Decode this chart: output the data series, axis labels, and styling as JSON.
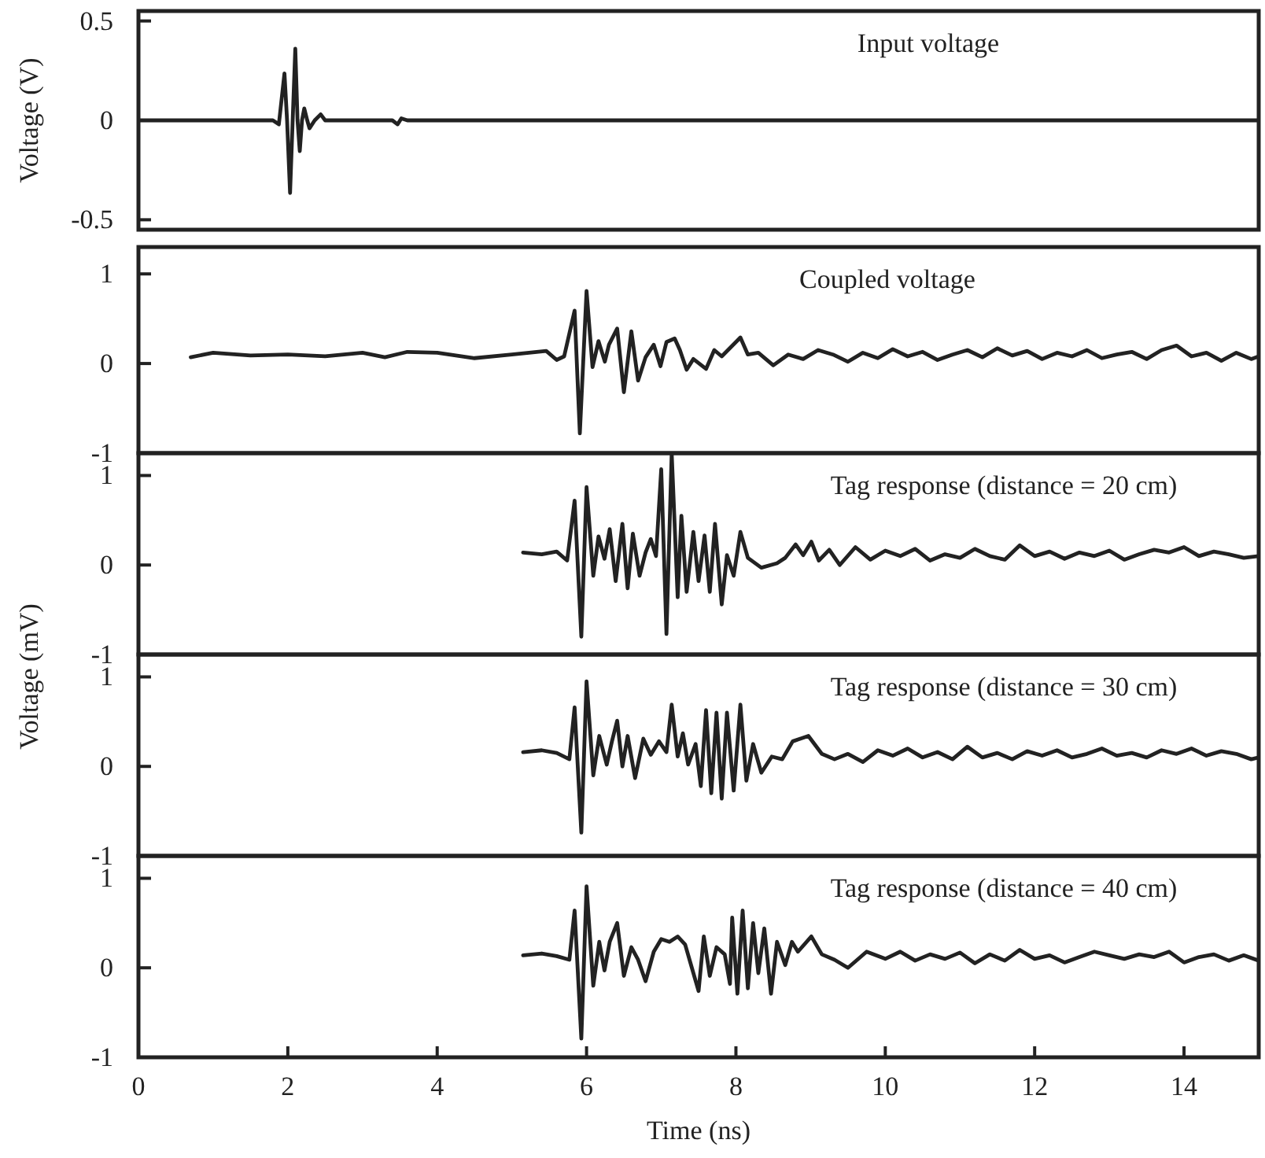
{
  "chart_data": [
    {
      "type": "line",
      "title": "Input voltage",
      "ylabel": "Voltage (V)",
      "color": "#222222",
      "xlim": [
        0,
        15
      ],
      "ylim": [
        -0.55,
        0.55
      ],
      "yticks": [
        -0.5,
        0,
        0.5
      ],
      "tick_labels": "y",
      "x": [
        0,
        1.8,
        1.88,
        1.955,
        1.99,
        2.03,
        2.065,
        2.1,
        2.13,
        2.16,
        2.19,
        2.22,
        2.26,
        2.29,
        2.36,
        2.44,
        2.5,
        2.7,
        3.4,
        3.47,
        3.52,
        3.6,
        15
      ],
      "values": [
        0,
        0,
        -0.02,
        0.236,
        0,
        -0.365,
        0,
        0.36,
        0,
        -0.155,
        0,
        0.06,
        0,
        -0.04,
        0,
        0.03,
        0,
        0,
        0,
        -0.02,
        0.01,
        0,
        0
      ]
    },
    {
      "type": "line",
      "title": "Coupled voltage",
      "color": "#222222",
      "xlim": [
        0,
        15
      ],
      "ylim": [
        -1,
        1.3
      ],
      "yticks": [
        -1,
        0,
        1
      ],
      "tick_labels": "y",
      "x": [
        0.7,
        1.0,
        1.5,
        2.0,
        2.5,
        3.0,
        3.3,
        3.6,
        4.0,
        4.5,
        5.0,
        5.46,
        5.6,
        5.7,
        5.84,
        5.91,
        6.0,
        6.08,
        6.16,
        6.245,
        6.3,
        6.41,
        6.5,
        6.6,
        6.69,
        6.79,
        6.9,
        6.99,
        7.07,
        7.18,
        7.25,
        7.34,
        7.43,
        7.6,
        7.71,
        7.81,
        8.06,
        8.16,
        8.3,
        8.5,
        8.7,
        8.9,
        9.1,
        9.3,
        9.5,
        9.7,
        9.9,
        10.1,
        10.3,
        10.5,
        10.7,
        10.9,
        11.1,
        11.3,
        11.5,
        11.7,
        11.9,
        12.1,
        12.3,
        12.5,
        12.7,
        12.9,
        13.1,
        13.3,
        13.5,
        13.7,
        13.9,
        14.1,
        14.3,
        14.5,
        14.7,
        14.9,
        15
      ],
      "values": [
        0.07,
        0.12,
        0.09,
        0.1,
        0.08,
        0.12,
        0.07,
        0.13,
        0.12,
        0.06,
        0.1,
        0.14,
        0.04,
        0.08,
        0.59,
        -0.78,
        0.81,
        -0.04,
        0.25,
        0.02,
        0.21,
        0.39,
        -0.32,
        0.36,
        -0.19,
        0.07,
        0.21,
        -0.03,
        0.24,
        0.28,
        0.15,
        -0.07,
        0.05,
        -0.06,
        0.15,
        0.08,
        0.29,
        0.1,
        0.12,
        -0.02,
        0.1,
        0.05,
        0.15,
        0.1,
        0.02,
        0.12,
        0.06,
        0.16,
        0.08,
        0.13,
        0.04,
        0.1,
        0.15,
        0.07,
        0.17,
        0.09,
        0.14,
        0.05,
        0.12,
        0.08,
        0.15,
        0.06,
        0.1,
        0.13,
        0.05,
        0.15,
        0.2,
        0.08,
        0.12,
        0.03,
        0.12,
        0.05,
        0.08
      ]
    },
    {
      "type": "line",
      "title": "Tag response (distance = 20 cm)",
      "color": "#222222",
      "xlim": [
        0,
        15
      ],
      "ylim": [
        -1,
        1.25
      ],
      "yticks": [
        -1,
        0,
        1
      ],
      "tick_labels": "y",
      "x": [
        5.15,
        5.4,
        5.6,
        5.74,
        5.84,
        5.93,
        6.0,
        6.09,
        6.16,
        6.24,
        6.31,
        6.39,
        6.48,
        6.55,
        6.62,
        6.71,
        6.79,
        6.86,
        6.93,
        7.0,
        7.07,
        7.14,
        7.22,
        7.27,
        7.34,
        7.43,
        7.5,
        7.58,
        7.65,
        7.72,
        7.81,
        7.88,
        7.97,
        8.06,
        8.16,
        8.34,
        8.55,
        8.66,
        8.8,
        8.9,
        9.01,
        9.11,
        9.25,
        9.39,
        9.6,
        9.8,
        10.0,
        10.2,
        10.4,
        10.6,
        10.8,
        11.0,
        11.2,
        11.4,
        11.6,
        11.8,
        12.0,
        12.2,
        12.4,
        12.6,
        12.8,
        13.0,
        13.2,
        13.4,
        13.6,
        13.8,
        14.0,
        14.2,
        14.4,
        14.6,
        14.8,
        15
      ],
      "values": [
        0.14,
        0.12,
        0.15,
        0.05,
        0.72,
        -0.8,
        0.87,
        -0.12,
        0.32,
        0.07,
        0.4,
        -0.18,
        0.46,
        -0.26,
        0.35,
        -0.12,
        0.14,
        0.29,
        0.1,
        1.07,
        -0.77,
        1.25,
        -0.36,
        0.55,
        -0.3,
        0.37,
        -0.18,
        0.33,
        -0.3,
        0.46,
        -0.44,
        0.11,
        -0.12,
        0.37,
        0.08,
        -0.03,
        0.02,
        0.08,
        0.23,
        0.11,
        0.26,
        0.05,
        0.17,
        0.0,
        0.2,
        0.06,
        0.16,
        0.1,
        0.18,
        0.05,
        0.12,
        0.08,
        0.18,
        0.1,
        0.06,
        0.22,
        0.1,
        0.15,
        0.07,
        0.14,
        0.1,
        0.16,
        0.06,
        0.12,
        0.17,
        0.14,
        0.2,
        0.1,
        0.15,
        0.12,
        0.08,
        0.1
      ]
    },
    {
      "type": "line",
      "title": "Tag response (distance = 30 cm)",
      "ylabel": "Voltage (mV)",
      "color": "#222222",
      "xlim": [
        0,
        15
      ],
      "ylim": [
        -1,
        1.25
      ],
      "yticks": [
        -1,
        0,
        1
      ],
      "tick_labels": "y",
      "x": [
        5.15,
        5.4,
        5.6,
        5.77,
        5.84,
        5.93,
        6.0,
        6.09,
        6.17,
        6.27,
        6.34,
        6.41,
        6.48,
        6.55,
        6.65,
        6.76,
        6.86,
        6.97,
        7.07,
        7.14,
        7.22,
        7.29,
        7.36,
        7.46,
        7.53,
        7.6,
        7.67,
        7.74,
        7.81,
        7.88,
        7.97,
        8.06,
        8.14,
        8.23,
        8.34,
        8.48,
        8.62,
        8.76,
        8.97,
        9.15,
        9.32,
        9.5,
        9.7,
        9.9,
        10.1,
        10.3,
        10.5,
        10.7,
        10.9,
        11.1,
        11.3,
        11.5,
        11.7,
        11.9,
        12.1,
        12.3,
        12.5,
        12.7,
        12.9,
        13.1,
        13.3,
        13.5,
        13.7,
        13.9,
        14.1,
        14.3,
        14.5,
        14.7,
        14.9,
        15
      ],
      "values": [
        0.16,
        0.18,
        0.15,
        0.08,
        0.66,
        -0.74,
        0.95,
        -0.1,
        0.34,
        0.02,
        0.28,
        0.51,
        0.0,
        0.34,
        -0.13,
        0.31,
        0.13,
        0.28,
        0.16,
        0.69,
        0.11,
        0.37,
        0.02,
        0.25,
        -0.22,
        0.63,
        -0.3,
        0.6,
        -0.36,
        0.6,
        -0.27,
        0.69,
        -0.16,
        0.25,
        -0.07,
        0.11,
        0.08,
        0.28,
        0.34,
        0.14,
        0.08,
        0.14,
        0.05,
        0.18,
        0.12,
        0.2,
        0.1,
        0.16,
        0.08,
        0.22,
        0.1,
        0.15,
        0.08,
        0.17,
        0.12,
        0.18,
        0.1,
        0.14,
        0.2,
        0.12,
        0.15,
        0.1,
        0.18,
        0.14,
        0.2,
        0.12,
        0.17,
        0.14,
        0.08,
        0.1
      ]
    },
    {
      "type": "line",
      "title": "Tag response (distance = 40 cm)",
      "xlabel": "Time (ns)",
      "color": "#222222",
      "xlim": [
        0,
        15
      ],
      "ylim": [
        -1,
        1.25
      ],
      "xticks": [
        0,
        2,
        4,
        6,
        8,
        10,
        12,
        14
      ],
      "yticks": [
        -1,
        0,
        1
      ],
      "x": [
        5.15,
        5.4,
        5.6,
        5.77,
        5.84,
        5.93,
        6.0,
        6.09,
        6.17,
        6.24,
        6.31,
        6.41,
        6.5,
        6.6,
        6.69,
        6.79,
        6.9,
        7.0,
        7.11,
        7.22,
        7.32,
        7.41,
        7.5,
        7.57,
        7.65,
        7.74,
        7.85,
        7.92,
        7.95,
        8.02,
        8.09,
        8.16,
        8.23,
        8.3,
        8.38,
        8.47,
        8.55,
        8.66,
        8.75,
        8.83,
        9.01,
        9.15,
        9.32,
        9.5,
        9.75,
        10.0,
        10.2,
        10.4,
        10.6,
        10.8,
        11.0,
        11.2,
        11.4,
        11.6,
        11.8,
        12.0,
        12.2,
        12.4,
        12.6,
        12.8,
        13.0,
        13.2,
        13.4,
        13.6,
        13.8,
        14.0,
        14.2,
        14.4,
        14.6,
        14.8,
        15
      ],
      "values": [
        0.14,
        0.16,
        0.13,
        0.09,
        0.64,
        -0.79,
        0.91,
        -0.2,
        0.29,
        -0.03,
        0.29,
        0.5,
        -0.09,
        0.23,
        0.09,
        -0.15,
        0.18,
        0.32,
        0.29,
        0.35,
        0.26,
        0.0,
        -0.26,
        0.35,
        -0.09,
        0.23,
        0.15,
        -0.18,
        0.56,
        -0.29,
        0.64,
        -0.23,
        0.5,
        -0.06,
        0.44,
        -0.29,
        0.29,
        0.03,
        0.29,
        0.18,
        0.35,
        0.15,
        0.09,
        0.0,
        0.18,
        0.1,
        0.18,
        0.08,
        0.15,
        0.1,
        0.17,
        0.05,
        0.15,
        0.08,
        0.2,
        0.1,
        0.14,
        0.06,
        0.12,
        0.18,
        0.14,
        0.1,
        0.15,
        0.12,
        0.18,
        0.06,
        0.12,
        0.15,
        0.08,
        0.14,
        0.08
      ]
    }
  ]
}
